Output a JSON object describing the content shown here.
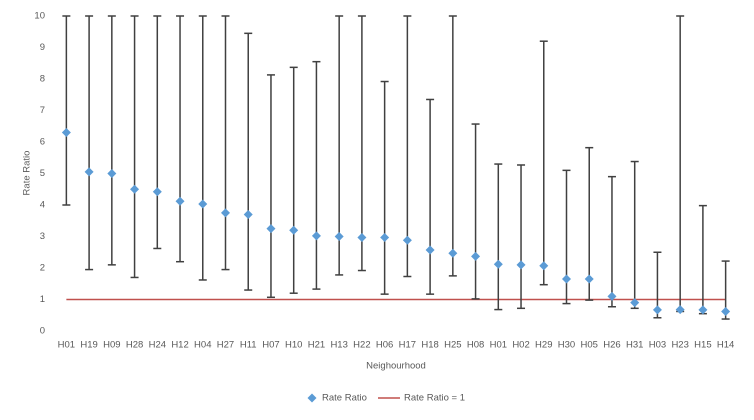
{
  "chart_data": {
    "type": "dot_errorbar",
    "x_label": "Neighourhood",
    "y_label": "Rate Ratio",
    "categories": [
      "H01",
      "H19",
      "H09",
      "H28",
      "H24",
      "H12",
      "H04",
      "H27",
      "H11",
      "H07",
      "H10",
      "H21",
      "H13",
      "H22",
      "H06",
      "H17",
      "H18",
      "H25",
      "H08",
      "H01",
      "H02",
      "H29",
      "H30",
      "H05",
      "H26",
      "H31",
      "H03",
      "H23",
      "H15",
      "H14"
    ],
    "series": [
      {
        "name": "Rate Ratio",
        "color": "#5b9bd5",
        "error_color": "#404040",
        "values": [
          6.3,
          5.05,
          5.0,
          4.5,
          4.42,
          4.12,
          4.03,
          3.75,
          3.7,
          3.25,
          3.2,
          3.02,
          3.0,
          2.97,
          2.97,
          2.88,
          2.57,
          2.47,
          2.37,
          2.12,
          2.1,
          2.07,
          1.65,
          1.65,
          1.1,
          0.9,
          0.67,
          0.68,
          0.67,
          0.62
        ],
        "lower": [
          4.0,
          1.95,
          2.1,
          1.7,
          2.62,
          2.2,
          1.62,
          1.95,
          1.3,
          1.07,
          1.2,
          1.33,
          1.78,
          1.92,
          1.17,
          1.73,
          1.17,
          1.75,
          1.02,
          0.68,
          0.72,
          1.47,
          0.87,
          0.98,
          0.77,
          0.72,
          0.42,
          0.62,
          0.55,
          0.38
        ],
        "upper": [
          10,
          10,
          10,
          10,
          10,
          10,
          10,
          10,
          9.45,
          8.13,
          8.37,
          8.55,
          10,
          10,
          7.92,
          10,
          7.35,
          10,
          6.57,
          5.3,
          5.27,
          9.2,
          5.1,
          5.82,
          4.9,
          5.38,
          2.5,
          10,
          3.98,
          2.22
        ]
      }
    ],
    "reference_line": {
      "value": 1,
      "label": "Rate Ratio = 1",
      "color": "#c0504d"
    },
    "ylim": [
      0,
      10
    ],
    "yticks": [
      0,
      1,
      2,
      3,
      4,
      5,
      6,
      7,
      8,
      9,
      10
    ],
    "grid": false,
    "legend": "bottom"
  }
}
